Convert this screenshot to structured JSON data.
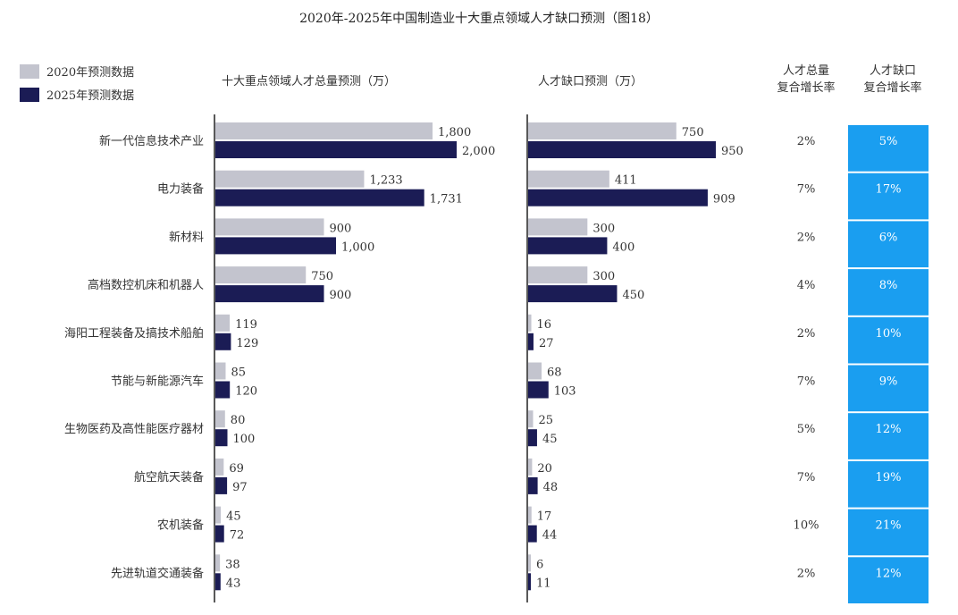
{
  "title": "2020年-2025年中国制造业十大重点领域人才缺口预测（图18）",
  "legend": [
    {
      "label": "2020年预测数据",
      "color": "#c3c4ce"
    },
    {
      "label": "2025年预测数据",
      "color": "#1b1c55"
    }
  ],
  "panels": {
    "total_title": "十大重点领域人才总量预测（万）",
    "gap_title": "人才缺口预测（万）"
  },
  "columns": {
    "total_cagr": [
      "人才总量",
      "复合增长率"
    ],
    "gap_cagr": [
      "人才缺口",
      "复合增长率"
    ]
  },
  "highlight_color": "#1a9ef0",
  "chart_data": {
    "type": "bar",
    "title": "2020年-2025年中国制造业十大重点领域人才缺口预测（图18）",
    "categories": [
      "新一代信息技术产业",
      "电力装备",
      "新材料",
      "高档数控机床和机器人",
      "海阳工程装备及搞技术船舶",
      "节能与新能源汽车",
      "生物医药及高性能医疗器材",
      "航空航天装备",
      "农机装备",
      "先进轨道交通装备"
    ],
    "total": {
      "series": [
        {
          "name": "2020年预测数据",
          "values": [
            1800,
            1233,
            900,
            750,
            119,
            85,
            80,
            69,
            45,
            38
          ],
          "labels": [
            "1,800",
            "1,233",
            "900",
            "750",
            "119",
            "85",
            "80",
            "69",
            "45",
            "38"
          ]
        },
        {
          "name": "2025年预测数据",
          "values": [
            2000,
            1731,
            1000,
            900,
            129,
            120,
            100,
            97,
            72,
            43
          ],
          "labels": [
            "2,000",
            "1,731",
            "1,000",
            "900",
            "129",
            "120",
            "100",
            "97",
            "72",
            "43"
          ]
        }
      ]
    },
    "gap": {
      "series": [
        {
          "name": "2020年预测数据",
          "values": [
            750,
            411,
            300,
            300,
            16,
            68,
            25,
            20,
            17,
            6
          ],
          "labels": [
            "750",
            "411",
            "300",
            "300",
            "16",
            "68",
            "25",
            "20",
            "17",
            "6"
          ]
        },
        {
          "name": "2025年预测数据",
          "values": [
            950,
            909,
            400,
            450,
            27,
            103,
            45,
            48,
            44,
            11
          ],
          "labels": [
            "950",
            "909",
            "400",
            "450",
            "27",
            "103",
            "45",
            "48",
            "44",
            "11"
          ]
        }
      ]
    },
    "total_cagr": [
      "2%",
      "7%",
      "2%",
      "4%",
      "2%",
      "7%",
      "5%",
      "7%",
      "10%",
      "2%"
    ],
    "gap_cagr": [
      "5%",
      "17%",
      "6%",
      "8%",
      "10%",
      "9%",
      "12%",
      "19%",
      "21%",
      "12%"
    ]
  }
}
